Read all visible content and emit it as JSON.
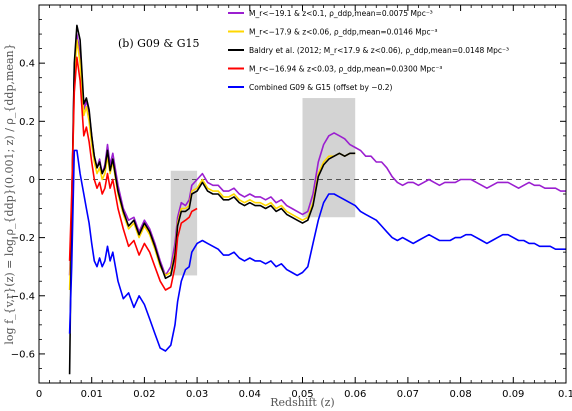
{
  "chart_data": {
    "type": "line",
    "panel_label": "(b) G09 & G15",
    "xlabel": "Redshift (z)",
    "ylabel": "log f_{v,r}(z) = log ρ_{ddp}(0.001; z) / ρ_{ddp,mean}",
    "xlim": [
      0,
      0.1
    ],
    "ylim": [
      -0.7,
      0.6
    ],
    "x_ticks": [
      0,
      0.01,
      0.02,
      0.03,
      0.04,
      0.05,
      0.06,
      0.07,
      0.08,
      0.09,
      0.1
    ],
    "x_tick_labels": [
      "0",
      "0.01",
      "0.02",
      "0.03",
      "0.04",
      "0.05",
      "0.06",
      "0.07",
      "0.08",
      "0.09",
      "0.1"
    ],
    "y_ticks": [
      -0.6,
      -0.4,
      -0.2,
      0,
      0.2,
      0.4
    ],
    "y_tick_labels": [
      "−0.6",
      "−0.4",
      "−0.2",
      "0",
      "0.2",
      "0.4"
    ],
    "reference_line": {
      "y": 0,
      "style": "dashed",
      "color": "#555555"
    },
    "shaded_regions": [
      {
        "x": [
          0.025,
          0.03
        ],
        "y": [
          -0.33,
          0.03
        ],
        "color": "#d3d3d3"
      },
      {
        "x": [
          0.05,
          0.06
        ],
        "y": [
          -0.13,
          0.28
        ],
        "color": "#d3d3d3"
      }
    ],
    "legend_position": "top-right",
    "series": [
      {
        "name": "M_r<−19.1 & z<0.1, ρ_ddp,mean=0.0075 Mpc⁻³",
        "color": "#9b1fd0",
        "x": [
          0.0058,
          0.0062,
          0.0067,
          0.0072,
          0.0078,
          0.0085,
          0.009,
          0.0095,
          0.01,
          0.0105,
          0.011,
          0.0115,
          0.012,
          0.0125,
          0.013,
          0.0135,
          0.014,
          0.015,
          0.016,
          0.017,
          0.018,
          0.019,
          0.02,
          0.021,
          0.022,
          0.023,
          0.024,
          0.025,
          0.0258,
          0.0263,
          0.027,
          0.0278,
          0.0285,
          0.029,
          0.03,
          0.031,
          0.032,
          0.033,
          0.034,
          0.035,
          0.036,
          0.037,
          0.038,
          0.039,
          0.04,
          0.041,
          0.042,
          0.043,
          0.044,
          0.045,
          0.046,
          0.047,
          0.048,
          0.049,
          0.05,
          0.051,
          0.052,
          0.053,
          0.054,
          0.055,
          0.056,
          0.057,
          0.058,
          0.059,
          0.06,
          0.061,
          0.062,
          0.063,
          0.064,
          0.065,
          0.066,
          0.067,
          0.068,
          0.069,
          0.07,
          0.071,
          0.072,
          0.073,
          0.074,
          0.075,
          0.076,
          0.077,
          0.078,
          0.079,
          0.08,
          0.081,
          0.082,
          0.083,
          0.084,
          0.085,
          0.086,
          0.087,
          0.088,
          0.089,
          0.09,
          0.091,
          0.092,
          0.093,
          0.094,
          0.095,
          0.096,
          0.097,
          0.098,
          0.099,
          0.1
        ],
        "y": [
          -0.33,
          -0.1,
          0.38,
          0.5,
          0.43,
          0.24,
          0.27,
          0.23,
          0.15,
          0.08,
          0.04,
          0.07,
          0.02,
          0.05,
          0.12,
          0.05,
          0.09,
          -0.02,
          -0.1,
          -0.14,
          -0.13,
          -0.18,
          -0.14,
          -0.17,
          -0.22,
          -0.28,
          -0.33,
          -0.3,
          -0.22,
          -0.13,
          -0.08,
          -0.09,
          -0.07,
          -0.02,
          0.0,
          0.02,
          -0.01,
          -0.02,
          -0.02,
          -0.04,
          -0.04,
          -0.03,
          -0.05,
          -0.06,
          -0.05,
          -0.06,
          -0.06,
          -0.07,
          -0.06,
          -0.08,
          -0.07,
          -0.09,
          -0.1,
          -0.11,
          -0.12,
          -0.11,
          -0.05,
          0.06,
          0.12,
          0.15,
          0.16,
          0.15,
          0.14,
          0.12,
          0.11,
          0.1,
          0.08,
          0.08,
          0.06,
          0.06,
          0.04,
          0.01,
          -0.01,
          -0.02,
          -0.01,
          -0.01,
          -0.02,
          -0.01,
          0.0,
          -0.01,
          -0.02,
          -0.01,
          -0.01,
          -0.01,
          0.0,
          0.0,
          0.0,
          -0.01,
          -0.02,
          -0.03,
          -0.02,
          -0.01,
          -0.01,
          -0.01,
          -0.02,
          -0.03,
          -0.02,
          -0.01,
          -0.02,
          -0.02,
          -0.03,
          -0.03,
          -0.03,
          -0.04,
          -0.04
        ]
      },
      {
        "name": "M_r<−17.9 & z<0.06, ρ_ddp,mean=0.0146 Mpc⁻³",
        "color": "#ffd700",
        "x": [
          0.0058,
          0.0062,
          0.0067,
          0.0072,
          0.0078,
          0.0085,
          0.009,
          0.0095,
          0.01,
          0.0105,
          0.011,
          0.0115,
          0.012,
          0.0125,
          0.013,
          0.0135,
          0.014,
          0.015,
          0.016,
          0.017,
          0.018,
          0.019,
          0.02,
          0.021,
          0.022,
          0.023,
          0.024,
          0.025,
          0.0258,
          0.0263,
          0.027,
          0.0278,
          0.0285,
          0.029,
          0.03,
          0.031,
          0.032,
          0.033,
          0.034,
          0.035,
          0.036,
          0.037,
          0.038,
          0.039,
          0.04,
          0.041,
          0.042,
          0.043,
          0.044,
          0.045,
          0.046,
          0.047,
          0.048,
          0.049,
          0.05,
          0.051,
          0.052,
          0.053,
          0.054,
          0.055,
          0.056,
          0.057,
          0.058,
          0.059,
          0.06
        ],
        "y": [
          -0.38,
          -0.14,
          0.35,
          0.48,
          0.4,
          0.22,
          0.25,
          0.2,
          0.12,
          0.06,
          0.02,
          0.04,
          0.0,
          0.02,
          0.08,
          0.02,
          0.06,
          -0.05,
          -0.12,
          -0.17,
          -0.15,
          -0.2,
          -0.16,
          -0.19,
          -0.24,
          -0.3,
          -0.33,
          -0.32,
          -0.25,
          -0.15,
          -0.1,
          -0.1,
          -0.09,
          -0.04,
          -0.03,
          0.0,
          -0.03,
          -0.04,
          -0.04,
          -0.06,
          -0.06,
          -0.05,
          -0.07,
          -0.08,
          -0.07,
          -0.08,
          -0.08,
          -0.09,
          -0.08,
          -0.1,
          -0.09,
          -0.11,
          -0.12,
          -0.13,
          -0.14,
          -0.13,
          -0.08,
          0.02,
          0.06,
          0.08,
          0.08,
          0.09,
          0.08,
          0.09,
          0.09
        ]
      },
      {
        "name": "Baldry et al. (2012; M_r<17.9 & z<0.06), ρ_ddp,mean=0.0148 Mpc⁻³",
        "color": "#000000",
        "x": [
          0.0058,
          0.0062,
          0.0067,
          0.0072,
          0.0078,
          0.0085,
          0.009,
          0.0095,
          0.01,
          0.0105,
          0.011,
          0.0115,
          0.012,
          0.0125,
          0.013,
          0.0135,
          0.014,
          0.015,
          0.016,
          0.017,
          0.018,
          0.019,
          0.02,
          0.021,
          0.022,
          0.023,
          0.024,
          0.025,
          0.0258,
          0.0263,
          0.027,
          0.0278,
          0.0285,
          0.029,
          0.03,
          0.031,
          0.032,
          0.033,
          0.034,
          0.035,
          0.036,
          0.037,
          0.038,
          0.039,
          0.04,
          0.041,
          0.042,
          0.043,
          0.044,
          0.045,
          0.046,
          0.047,
          0.048,
          0.049,
          0.05,
          0.051,
          0.052,
          0.053,
          0.054,
          0.055,
          0.056,
          0.057,
          0.058,
          0.059,
          0.06
        ],
        "y": [
          -0.67,
          -0.1,
          0.4,
          0.53,
          0.48,
          0.26,
          0.28,
          0.24,
          0.15,
          0.08,
          0.04,
          0.06,
          0.02,
          0.04,
          0.1,
          0.03,
          0.07,
          -0.04,
          -0.11,
          -0.16,
          -0.14,
          -0.19,
          -0.15,
          -0.18,
          -0.23,
          -0.29,
          -0.34,
          -0.33,
          -0.26,
          -0.16,
          -0.11,
          -0.11,
          -0.1,
          -0.05,
          -0.04,
          -0.01,
          -0.04,
          -0.05,
          -0.05,
          -0.07,
          -0.07,
          -0.06,
          -0.08,
          -0.09,
          -0.08,
          -0.09,
          -0.09,
          -0.1,
          -0.09,
          -0.11,
          -0.1,
          -0.12,
          -0.13,
          -0.14,
          -0.15,
          -0.14,
          -0.09,
          0.01,
          0.05,
          0.07,
          0.08,
          0.09,
          0.08,
          0.09,
          0.09
        ]
      },
      {
        "name": "M_r<−16.94 & z<0.03, ρ_ddp,mean=0.0300 Mpc⁻³",
        "color": "#ff0000",
        "x": [
          0.0058,
          0.0062,
          0.0067,
          0.0072,
          0.0078,
          0.0085,
          0.009,
          0.0095,
          0.01,
          0.0105,
          0.011,
          0.0115,
          0.012,
          0.0125,
          0.013,
          0.0135,
          0.014,
          0.015,
          0.016,
          0.017,
          0.018,
          0.019,
          0.02,
          0.021,
          0.022,
          0.023,
          0.024,
          0.025,
          0.0258,
          0.0263,
          0.027,
          0.0278,
          0.0285,
          0.029,
          0.03
        ],
        "y": [
          -0.28,
          -0.05,
          0.3,
          0.42,
          0.34,
          0.15,
          0.18,
          0.13,
          0.06,
          0.0,
          -0.03,
          -0.01,
          -0.05,
          -0.03,
          0.02,
          -0.03,
          0.0,
          -0.1,
          -0.17,
          -0.23,
          -0.21,
          -0.26,
          -0.22,
          -0.25,
          -0.3,
          -0.35,
          -0.38,
          -0.37,
          -0.3,
          -0.2,
          -0.15,
          -0.14,
          -0.13,
          -0.11,
          -0.1
        ]
      },
      {
        "name": "Combined G09 & G15 (offset by −0.2)",
        "color": "#0000ff",
        "x": [
          0.0058,
          0.0062,
          0.0067,
          0.0072,
          0.0078,
          0.0085,
          0.009,
          0.0095,
          0.01,
          0.0105,
          0.011,
          0.0115,
          0.012,
          0.0125,
          0.013,
          0.0135,
          0.014,
          0.015,
          0.016,
          0.017,
          0.018,
          0.019,
          0.02,
          0.021,
          0.022,
          0.023,
          0.024,
          0.025,
          0.0258,
          0.0263,
          0.027,
          0.0278,
          0.0285,
          0.029,
          0.03,
          0.031,
          0.032,
          0.033,
          0.034,
          0.035,
          0.036,
          0.037,
          0.038,
          0.039,
          0.04,
          0.041,
          0.042,
          0.043,
          0.044,
          0.045,
          0.046,
          0.047,
          0.048,
          0.049,
          0.05,
          0.051,
          0.052,
          0.053,
          0.054,
          0.055,
          0.056,
          0.057,
          0.058,
          0.059,
          0.06,
          0.061,
          0.062,
          0.063,
          0.064,
          0.065,
          0.066,
          0.067,
          0.068,
          0.069,
          0.07,
          0.071,
          0.072,
          0.073,
          0.074,
          0.075,
          0.076,
          0.077,
          0.078,
          0.079,
          0.08,
          0.081,
          0.082,
          0.083,
          0.084,
          0.085,
          0.086,
          0.087,
          0.088,
          0.089,
          0.09,
          0.091,
          0.092,
          0.093,
          0.094,
          0.095,
          0.096,
          0.097,
          0.098,
          0.099,
          0.1
        ],
        "y": [
          -0.53,
          -0.3,
          0.1,
          0.1,
          0.02,
          -0.05,
          -0.1,
          -0.15,
          -0.22,
          -0.28,
          -0.3,
          -0.27,
          -0.3,
          -0.28,
          -0.23,
          -0.28,
          -0.25,
          -0.35,
          -0.41,
          -0.39,
          -0.44,
          -0.4,
          -0.43,
          -0.48,
          -0.53,
          -0.58,
          -0.59,
          -0.57,
          -0.5,
          -0.42,
          -0.35,
          -0.31,
          -0.3,
          -0.25,
          -0.22,
          -0.21,
          -0.22,
          -0.23,
          -0.24,
          -0.26,
          -0.26,
          -0.25,
          -0.27,
          -0.28,
          -0.27,
          -0.28,
          -0.28,
          -0.29,
          -0.28,
          -0.3,
          -0.29,
          -0.31,
          -0.32,
          -0.33,
          -0.32,
          -0.3,
          -0.22,
          -0.14,
          -0.08,
          -0.05,
          -0.05,
          -0.06,
          -0.07,
          -0.08,
          -0.09,
          -0.11,
          -0.12,
          -0.13,
          -0.14,
          -0.16,
          -0.18,
          -0.2,
          -0.21,
          -0.2,
          -0.21,
          -0.22,
          -0.21,
          -0.2,
          -0.19,
          -0.2,
          -0.21,
          -0.21,
          -0.21,
          -0.2,
          -0.2,
          -0.19,
          -0.19,
          -0.2,
          -0.21,
          -0.22,
          -0.21,
          -0.2,
          -0.19,
          -0.19,
          -0.2,
          -0.21,
          -0.21,
          -0.22,
          -0.22,
          -0.23,
          -0.23,
          -0.23,
          -0.24,
          -0.24,
          -0.24
        ]
      }
    ]
  }
}
